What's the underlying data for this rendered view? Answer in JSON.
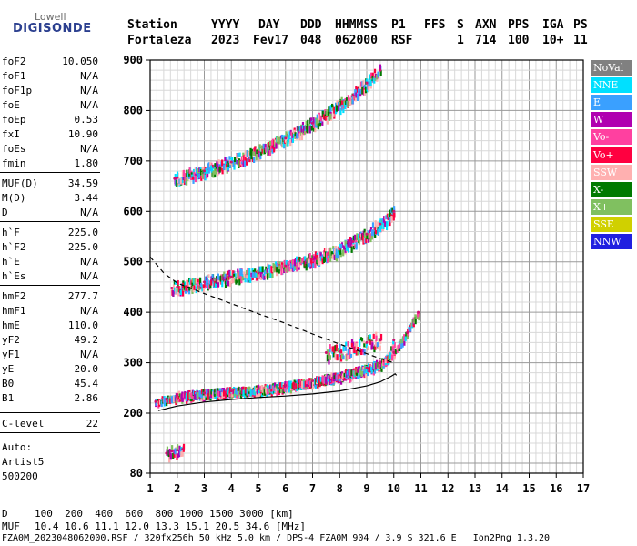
{
  "logo": {
    "line1": "Lowell",
    "line2": "DIGISONDE"
  },
  "header": {
    "labels": [
      "Station",
      "YYYY",
      "DAY",
      "DDD",
      "HHMMSS",
      "P1",
      "FFS",
      "S",
      "AXN",
      "PPS",
      "IGA",
      "PS"
    ],
    "values": [
      "Fortaleza",
      "2023",
      "Fev17",
      "048",
      "062000",
      "RSF",
      "",
      "1",
      "714",
      "100",
      "10+",
      "11"
    ]
  },
  "params": [
    {
      "name": "foF2",
      "value": "10.050"
    },
    {
      "name": "foF1",
      "value": "N/A"
    },
    {
      "name": "foF1p",
      "value": "N/A"
    },
    {
      "name": "foE",
      "value": "N/A"
    },
    {
      "name": "foEp",
      "value": "0.53"
    },
    {
      "name": "fxI",
      "value": "10.90"
    },
    {
      "name": "foEs",
      "value": "N/A"
    },
    {
      "name": "fmin",
      "value": "1.80"
    },
    {
      "name": "MUF(D)",
      "value": "34.59"
    },
    {
      "name": "M(D)",
      "value": "3.44"
    },
    {
      "name": "D",
      "value": "N/A"
    },
    {
      "name": "h`F",
      "value": "225.0"
    },
    {
      "name": "h`F2",
      "value": "225.0"
    },
    {
      "name": "h`E",
      "value": "N/A"
    },
    {
      "name": "h`Es",
      "value": "N/A"
    },
    {
      "name": "hmF2",
      "value": "277.7"
    },
    {
      "name": "hmF1",
      "value": "N/A"
    },
    {
      "name": "hmE",
      "value": "110.0"
    },
    {
      "name": "yF2",
      "value": "49.2"
    },
    {
      "name": "yF1",
      "value": "N/A"
    },
    {
      "name": "yE",
      "value": "20.0"
    },
    {
      "name": "B0",
      "value": "45.4"
    },
    {
      "name": "B1",
      "value": "2.86"
    },
    {
      "name": "C-level",
      "value": "22"
    }
  ],
  "auto": {
    "line1": "Auto:",
    "line2": "Artist5",
    "line3": "500200"
  },
  "legend": [
    {
      "label": "NoVal",
      "color": "#808080"
    },
    {
      "label": "NNE",
      "color": "#00e0ff"
    },
    {
      "label": "E",
      "color": "#3aa0ff"
    },
    {
      "label": "W",
      "color": "#b000b0"
    },
    {
      "label": "Vo-",
      "color": "#ff40a0"
    },
    {
      "label": "Vo+",
      "color": "#ff0040"
    },
    {
      "label": "SSW",
      "color": "#ffb0b0"
    },
    {
      "label": "X-",
      "color": "#007a00"
    },
    {
      "label": "X+",
      "color": "#80c060"
    },
    {
      "label": "SSE",
      "color": "#d0d000"
    },
    {
      "label": "NNW",
      "color": "#2020e0"
    }
  ],
  "footer": {
    "row1_label": "D",
    "row1_values": "100  200  400  600  800 1000 1500 3000 [km]",
    "row2_label": "MUF",
    "row2_values": "10.4 10.6 11.1 12.0 13.3 15.1 20.5 34.6 [MHz]",
    "row3": "FZA0M_2023048062000.RSF / 320fx256h 50 kHz 5.0 km / DPS-4 FZA0M 904 / 3.9 S 321.6 E   Ion2Png 1.3.20"
  },
  "chart_data": {
    "type": "scatter",
    "title": "",
    "xlabel": "",
    "ylabel": "",
    "xlim": [
      1,
      17
    ],
    "ylim": [
      80,
      900
    ],
    "xticks": [
      1,
      2,
      3,
      4,
      5,
      6,
      7,
      8,
      9,
      10,
      11,
      12,
      13,
      14,
      15,
      16,
      17
    ],
    "yticks": [
      80,
      200,
      300,
      400,
      500,
      600,
      700,
      800,
      900
    ],
    "grid": true,
    "legend_position": "right",
    "traces": [
      {
        "name": "1-hop O-trace",
        "points": [
          [
            1.2,
            223
          ],
          [
            1.6,
            228
          ],
          [
            2.0,
            232
          ],
          [
            3.0,
            236
          ],
          [
            4.0,
            240
          ],
          [
            5.0,
            244
          ],
          [
            6.0,
            250
          ],
          [
            7.0,
            260
          ],
          [
            7.5,
            265
          ],
          [
            8.0,
            270
          ],
          [
            8.5,
            278
          ],
          [
            9.0,
            285
          ],
          [
            9.5,
            295
          ],
          [
            9.8,
            310
          ],
          [
            10.0,
            345
          ]
        ]
      },
      {
        "name": "1-hop X-trace",
        "points": [
          [
            2.0,
            236
          ],
          [
            3.0,
            240
          ],
          [
            4.0,
            244
          ],
          [
            5.0,
            248
          ],
          [
            6.0,
            255
          ],
          [
            7.0,
            264
          ],
          [
            8.0,
            276
          ],
          [
            9.0,
            290
          ],
          [
            9.5,
            300
          ],
          [
            10.0,
            320
          ],
          [
            10.5,
            360
          ],
          [
            10.9,
            400
          ]
        ]
      },
      {
        "name": "2-hop",
        "points": [
          [
            1.8,
            448
          ],
          [
            2.0,
            450
          ],
          [
            3.0,
            460
          ],
          [
            4.0,
            470
          ],
          [
            5.0,
            478
          ],
          [
            6.0,
            492
          ],
          [
            7.0,
            505
          ],
          [
            8.0,
            525
          ],
          [
            8.5,
            540
          ],
          [
            9.0,
            555
          ],
          [
            9.5,
            575
          ],
          [
            9.8,
            585
          ],
          [
            10.0,
            600
          ]
        ]
      },
      {
        "name": "3-hop",
        "points": [
          [
            1.9,
            665
          ],
          [
            2.0,
            667
          ],
          [
            3.0,
            680
          ],
          [
            4.0,
            698
          ],
          [
            5.0,
            718
          ],
          [
            6.0,
            745
          ],
          [
            7.0,
            775
          ],
          [
            8.0,
            810
          ],
          [
            8.5,
            830
          ],
          [
            9.0,
            855
          ],
          [
            9.5,
            880
          ]
        ]
      },
      {
        "name": "sporadic lower",
        "points": [
          [
            1.6,
            120
          ],
          [
            1.8,
            124
          ],
          [
            2.0,
            126
          ],
          [
            2.2,
            128
          ]
        ]
      },
      {
        "name": "scatter cluster",
        "points": [
          [
            7.5,
            320
          ],
          [
            8.0,
            322
          ],
          [
            8.5,
            330
          ],
          [
            9.0,
            340
          ],
          [
            9.5,
            345
          ]
        ]
      }
    ],
    "profile_lines": [
      {
        "name": "virtual-height model",
        "style": "dashed",
        "points": [
          [
            1.0,
            510
          ],
          [
            1.5,
            478
          ],
          [
            2.0,
            458
          ],
          [
            3.0,
            437
          ],
          [
            4.0,
            417
          ],
          [
            5.0,
            397
          ],
          [
            6.0,
            378
          ],
          [
            7.0,
            357
          ],
          [
            8.0,
            337
          ],
          [
            9.0,
            318
          ],
          [
            9.5,
            308
          ],
          [
            10.0,
            300
          ]
        ]
      },
      {
        "name": "true-height profile",
        "style": "solid",
        "points": [
          [
            1.3,
            205
          ],
          [
            2.0,
            214
          ],
          [
            3.0,
            222
          ],
          [
            4.0,
            227
          ],
          [
            5.0,
            231
          ],
          [
            6.0,
            234
          ],
          [
            7.0,
            238
          ],
          [
            8.0,
            244
          ],
          [
            9.0,
            254
          ],
          [
            9.5,
            262
          ],
          [
            9.9,
            273
          ],
          [
            10.05,
            278
          ],
          [
            10.1,
            275
          ]
        ]
      }
    ]
  }
}
